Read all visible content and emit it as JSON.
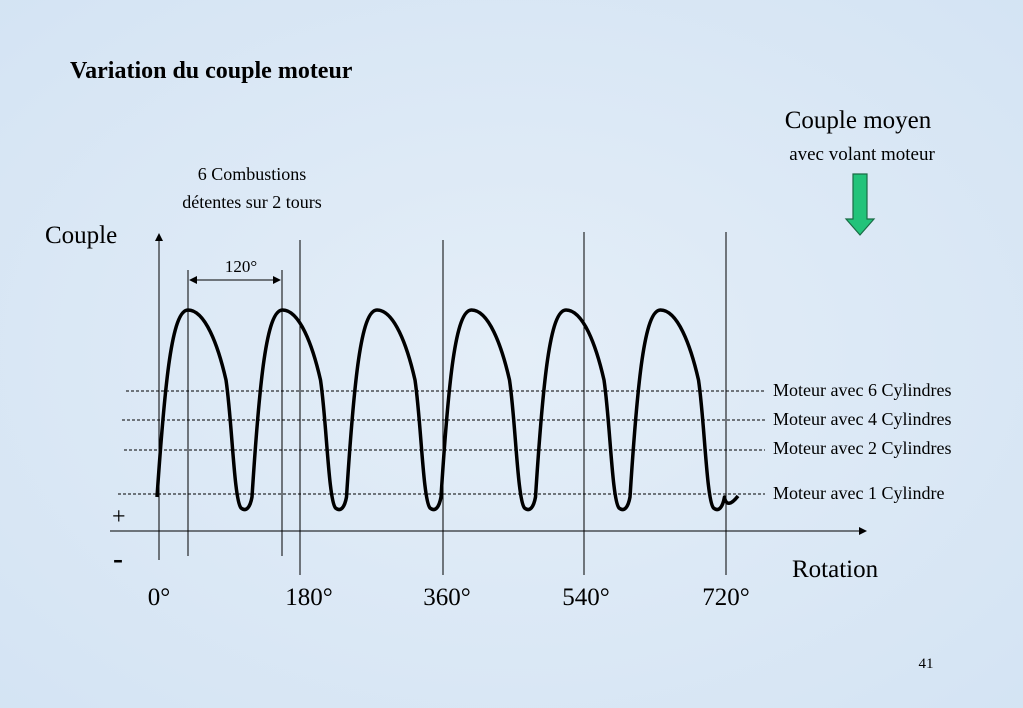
{
  "title": "Variation du couple moteur",
  "combustions": {
    "line1": "6 Combustions",
    "line2": "détentes sur 2 tours",
    "angle": "120°"
  },
  "average": {
    "title": "Couple moyen",
    "subtitle": "avec volant moteur"
  },
  "axes": {
    "y_label": "Couple",
    "x_label": "Rotation",
    "plus": "+",
    "minus": "-",
    "x_labels": [
      "0°",
      "180°",
      "360°",
      "540°",
      "720°"
    ]
  },
  "levels": [
    "Moteur avec 6 Cylindres",
    "Moteur avec 4 Cylindres",
    "Moteur avec 2 Cylindres",
    "Moteur avec 1 Cylindre"
  ],
  "page_number": "41"
}
